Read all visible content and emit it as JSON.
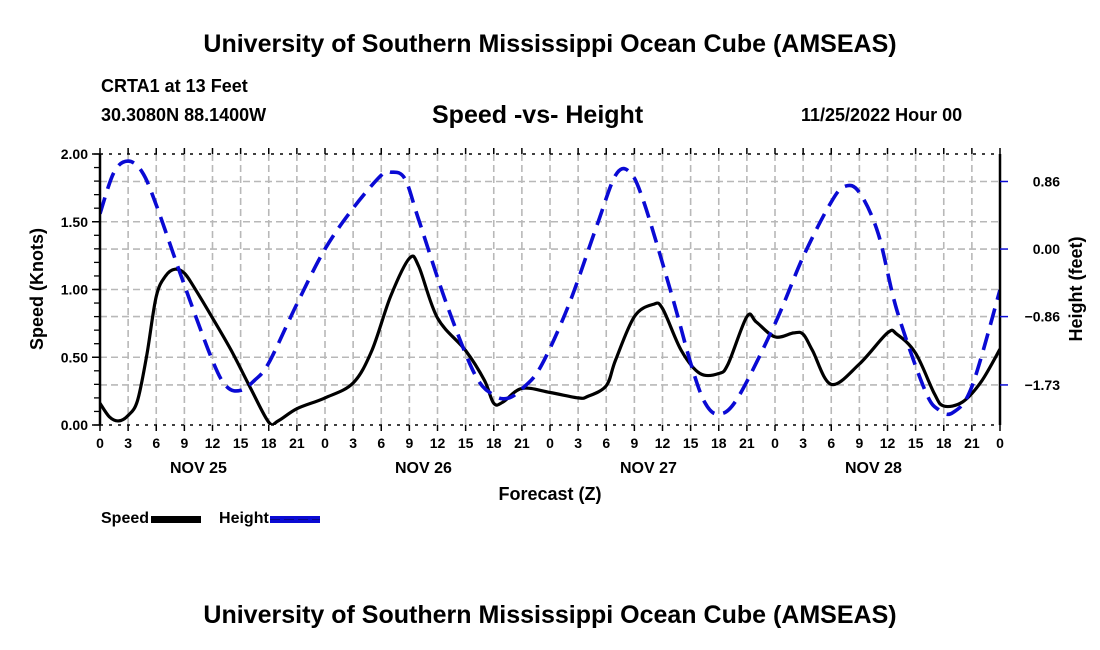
{
  "header": {
    "main_title": "University of Southern Mississippi Ocean Cube (AMSEAS)",
    "station": "CRTA1 at 13 Feet",
    "coords": "30.3080N  88.1400W",
    "subtitle": "Speed -vs- Height",
    "runtime": "11/25/2022 Hour 00"
  },
  "footer": {
    "title": "University of Southern Mississippi Ocean Cube (AMSEAS)"
  },
  "legend": {
    "items": [
      {
        "label": "Speed",
        "color": "#000000",
        "style": "solid"
      },
      {
        "label": "Height",
        "color": "#0a0ad4",
        "style": "dashed"
      }
    ]
  },
  "chart_data": {
    "type": "line",
    "title": "Speed -vs- Height",
    "xlabel": "Forecast (Z)",
    "ylabel": "Speed (Knots)",
    "y2label": "Height (feet)",
    "x_unit": "hours since 11/25/2022 00Z",
    "xlim": [
      0,
      96
    ],
    "ylim": [
      0,
      2.0
    ],
    "y2lim": [
      -2.24,
      1.21
    ],
    "grid": true,
    "legend_position": "bottom-left",
    "x_ticks": [
      0,
      3,
      6,
      9,
      12,
      15,
      18,
      21,
      24,
      27,
      30,
      33,
      36,
      39,
      42,
      45,
      48,
      51,
      54,
      57,
      60,
      63,
      66,
      69,
      72,
      75,
      78,
      81,
      84,
      87,
      90,
      93,
      96
    ],
    "x_tick_labels": [
      "0",
      "3",
      "6",
      "9",
      "12",
      "15",
      "18",
      "21",
      "0",
      "3",
      "6",
      "9",
      "12",
      "15",
      "18",
      "21",
      "0",
      "3",
      "6",
      "9",
      "12",
      "15",
      "18",
      "21",
      "0",
      "3",
      "6",
      "9",
      "12",
      "15",
      "18",
      "21",
      "0"
    ],
    "day_labels": [
      {
        "label": "NOV 25",
        "center_hour": 10.5
      },
      {
        "label": "NOV 26",
        "center_hour": 34.5
      },
      {
        "label": "NOV 27",
        "center_hour": 58.5
      },
      {
        "label": "NOV 28",
        "center_hour": 82.5
      }
    ],
    "y_ticks": [
      0.0,
      0.5,
      1.0,
      1.5,
      2.0
    ],
    "y_tick_labels": [
      "0.00",
      "0.50",
      "1.00",
      "1.50",
      "2.00"
    ],
    "y2_ticks": [
      0.86,
      0.0,
      -0.86,
      -1.73
    ],
    "y2_tick_labels": [
      "0.86",
      "0.00",
      "−0.86",
      "−1.73"
    ],
    "series": [
      {
        "name": "Speed",
        "axis": "left",
        "color": "#000000",
        "dash": "solid",
        "x": [
          0,
          1,
          2,
          3,
          4,
          5,
          6,
          7,
          8,
          9,
          10,
          12,
          14,
          16,
          18,
          19,
          21,
          24,
          27,
          29,
          31,
          33,
          34,
          36,
          39,
          41,
          42,
          43,
          45,
          48,
          51,
          52,
          54,
          55,
          57,
          59,
          60,
          62,
          64,
          66,
          67,
          69,
          70,
          72,
          74,
          75,
          76,
          78,
          81,
          84,
          85,
          87,
          89,
          90,
          92,
          94,
          96
        ],
        "values": [
          0.16,
          0.06,
          0.03,
          0.07,
          0.18,
          0.52,
          0.95,
          1.1,
          1.15,
          1.12,
          1.02,
          0.79,
          0.55,
          0.28,
          0.02,
          0.03,
          0.12,
          0.2,
          0.31,
          0.55,
          0.95,
          1.23,
          1.17,
          0.79,
          0.55,
          0.33,
          0.16,
          0.17,
          0.27,
          0.24,
          0.2,
          0.21,
          0.29,
          0.48,
          0.8,
          0.89,
          0.86,
          0.55,
          0.38,
          0.38,
          0.45,
          0.8,
          0.76,
          0.65,
          0.68,
          0.67,
          0.55,
          0.3,
          0.45,
          0.68,
          0.67,
          0.53,
          0.23,
          0.14,
          0.17,
          0.32,
          0.56
        ]
      },
      {
        "name": "Height",
        "axis": "right",
        "color": "#0a0ad4",
        "dash": "dashed",
        "x": [
          0,
          1.5,
          3,
          4.5,
          6,
          9,
          12,
          13.5,
          15,
          16.5,
          18,
          21,
          24,
          27,
          30,
          31,
          32.5,
          34,
          37,
          40,
          42,
          43.5,
          45,
          47,
          50,
          53,
          55,
          56.5,
          58,
          61,
          63,
          64.5,
          66,
          68,
          72,
          75,
          78,
          79.5,
          81,
          83,
          85,
          88,
          89.5,
          91,
          93,
          96
        ],
        "values": [
          0.45,
          0.98,
          1.12,
          0.98,
          0.56,
          -0.46,
          -1.42,
          -1.75,
          -1.8,
          -1.67,
          -1.45,
          -0.7,
          0.0,
          0.52,
          0.94,
          0.98,
          0.9,
          0.37,
          -0.71,
          -1.6,
          -1.86,
          -1.9,
          -1.78,
          -1.5,
          -0.71,
          0.3,
          0.94,
          0.98,
          0.6,
          -0.59,
          -1.45,
          -1.95,
          -2.1,
          -1.9,
          -0.95,
          -0.1,
          0.6,
          0.8,
          0.72,
          0.2,
          -0.78,
          -1.8,
          -2.05,
          -2.08,
          -1.75,
          -0.52
        ]
      }
    ]
  }
}
